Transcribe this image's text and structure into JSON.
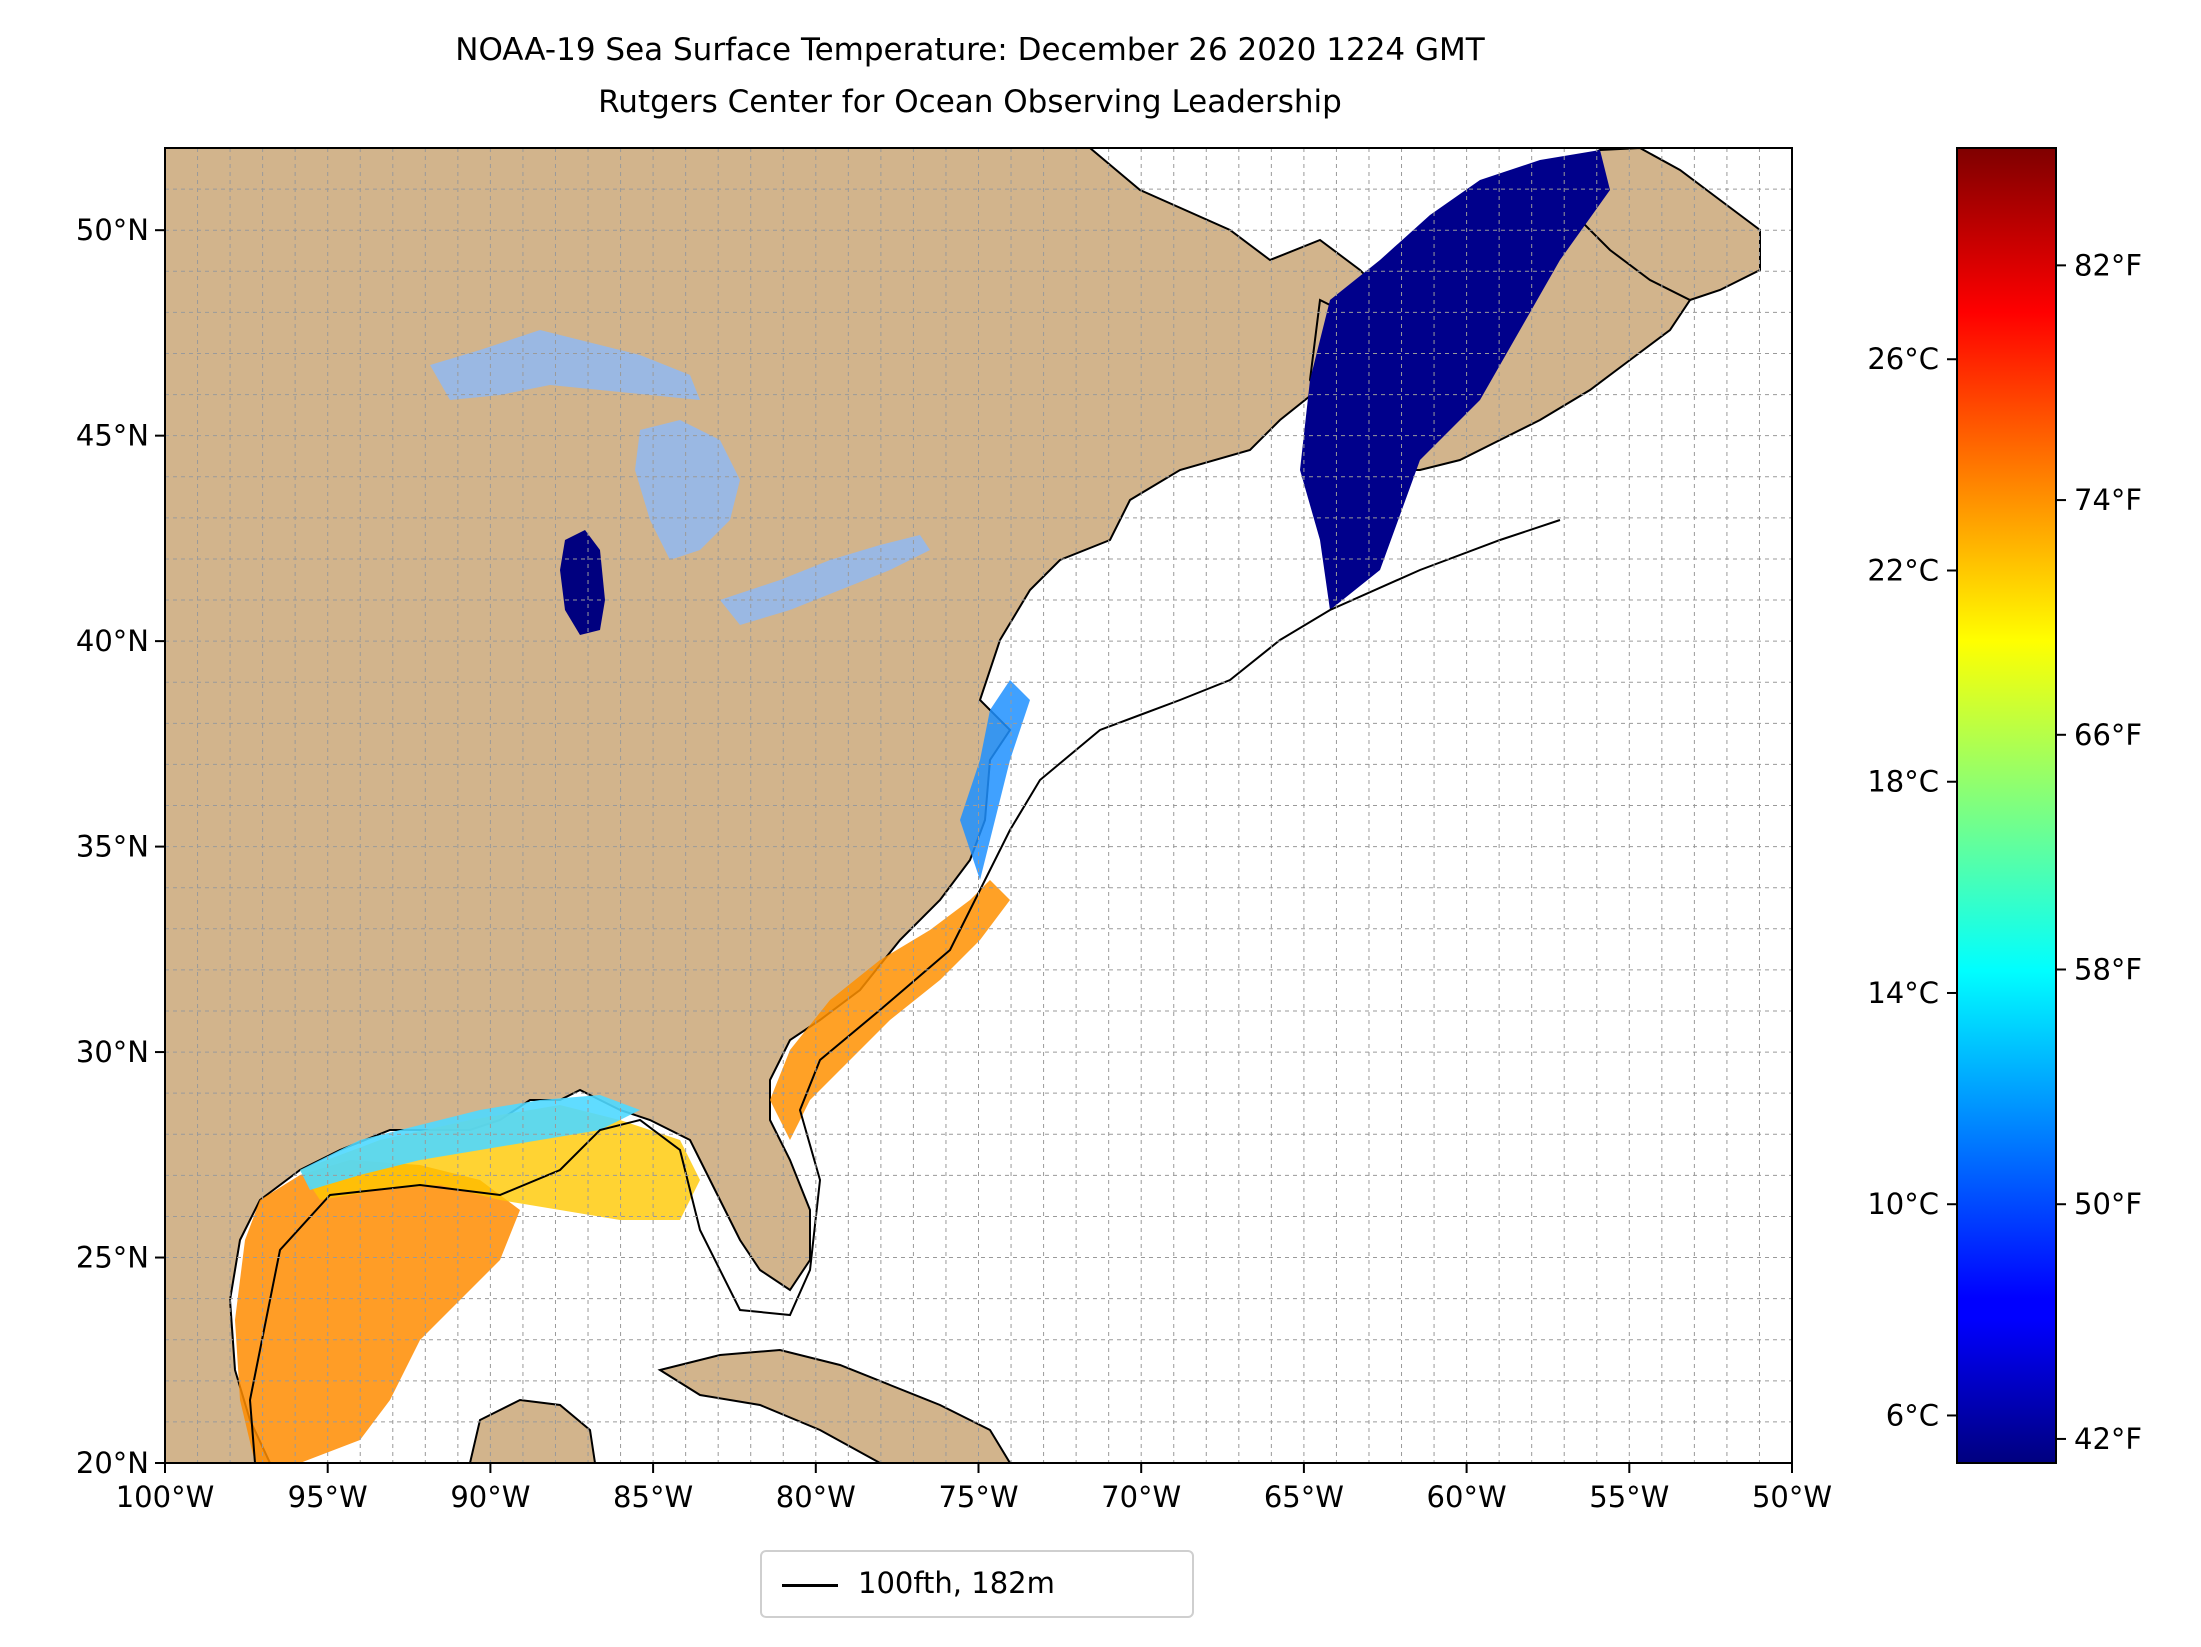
{
  "title_line1": "NOAA-19 Sea Surface Temperature: December 26 2020 1224 GMT",
  "title_line2": "Rutgers Center for Ocean Observing Leadership",
  "map": {
    "lon_range": [
      -100,
      -50
    ],
    "lat_range": [
      20,
      52
    ],
    "gridlines": true,
    "land_color": "#d2b48c",
    "lake_color": "#9ab8e3",
    "ocean_color": "#ffffff",
    "lon_ticks": [
      "100°W",
      "95°W",
      "90°W",
      "85°W",
      "80°W",
      "75°W",
      "70°W",
      "65°W",
      "60°W",
      "55°W",
      "50°W"
    ],
    "lat_ticks": [
      "20°N",
      "25°N",
      "30°N",
      "35°N",
      "40°N",
      "45°N",
      "50°N"
    ]
  },
  "legend": {
    "label": "100fth, 182m",
    "line_color": "#000000",
    "placement": "bottom-center"
  },
  "colorbar": {
    "colormap": "jet",
    "range_c": [
      5.1,
      30.0
    ],
    "celsius_ticks": [
      {
        "value": 6,
        "label": "6°C"
      },
      {
        "value": 10,
        "label": "10°C"
      },
      {
        "value": 14,
        "label": "14°C"
      },
      {
        "value": 18,
        "label": "18°C"
      },
      {
        "value": 22,
        "label": "22°C"
      },
      {
        "value": 26,
        "label": "26°C"
      }
    ],
    "fahrenheit_ticks": [
      {
        "value": 42,
        "label": "42°F"
      },
      {
        "value": 50,
        "label": "50°F"
      },
      {
        "value": 58,
        "label": "58°F"
      },
      {
        "value": 66,
        "label": "66°F"
      },
      {
        "value": 74,
        "label": "74°F"
      },
      {
        "value": 82,
        "label": "82°F"
      }
    ]
  }
}
